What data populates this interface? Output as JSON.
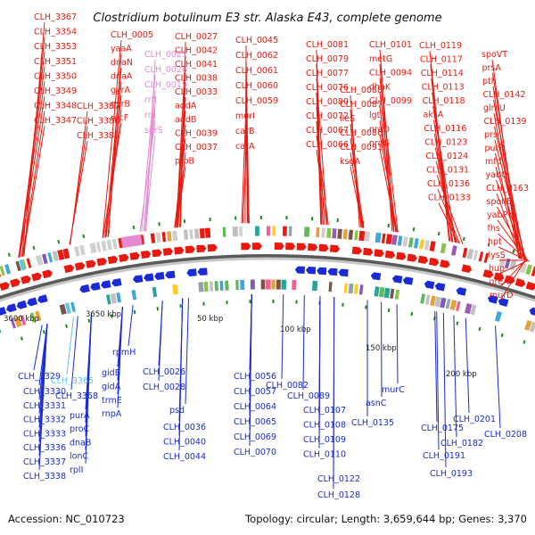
{
  "title": "Clostridium botulinum E3 str. Alaska E43, complete genome",
  "accession_text": "Accession: NC_010723",
  "topology_text": "Topology: circular; Length: 3,659,644 bp; Genes: 3,370",
  "colors": {
    "forward": "#e8190f",
    "reverse": "#1a2bd6",
    "rna": "#e58ad1",
    "cyan": "#5fc4e8",
    "backbone": "#8f8f8f",
    "tick": "#1a8a1a"
  },
  "scale_labels": [
    "3600 kbp",
    "3650 kbp",
    "50 kbp",
    "100 kbp",
    "150 kbp",
    "200 kbp"
  ],
  "top_labels": [
    "CLH_3367",
    "CLH_3354",
    "CLH_3353",
    "CLH_3351",
    "CLH_3350",
    "CLH_3349",
    "CLH_3348",
    "CLH_3347",
    "CLH_3387",
    "CLH_3386",
    "CLH_3385",
    "CLH_0005",
    "yaaA",
    "dnaN",
    "dnaA",
    "gyrA",
    "gyrB",
    "recF",
    "CLH_0021",
    "CLH_0020",
    "CLH_0019",
    "rrfJ",
    "rrlJ",
    "serS",
    "CLH_0027",
    "CLH_0042",
    "CLH_0041",
    "CLH_0038",
    "CLH_0033",
    "addA",
    "addB",
    "CLH_0039",
    "CLH_0037",
    "proB",
    "CLH_0045",
    "CLH_0062",
    "CLH_0061",
    "CLH_0060",
    "CLH_0059",
    "murI",
    "carB",
    "carA",
    "CLH_0081",
    "CLH_0079",
    "CLH_0077",
    "CLH_0076",
    "CLH_0080",
    "CLH_0072",
    "CLH_0067",
    "CLH_0066",
    "CLH_0088",
    "CLH_0087",
    "ileS",
    "CLH_0086",
    "CLH_0091",
    "ksgA",
    "CLH_0101",
    "metG",
    "CLH_0094",
    "dhaK",
    "CLH_0099",
    "lgt",
    "nrdD",
    "nrdG",
    "CLH_0119",
    "CLH_0117",
    "CLH_0114",
    "CLH_0113",
    "CLH_0118",
    "aksA",
    "CLH_0116",
    "CLH_0123",
    "CLH_0124",
    "CLH_0131",
    "CLH_0136",
    "CLH_0133",
    "spoVT",
    "prsA",
    "pth",
    "CLH_0142",
    "glmU",
    "CLH_0139",
    "prs",
    "purR",
    "mfd",
    "yabQ",
    "CLH_0163",
    "spoIIE",
    "yabP",
    "fhs",
    "hpt",
    "lysS",
    "hup",
    "greA",
    "murD"
  ],
  "bottom_labels": [
    "CLH_3329",
    "CLH_3365",
    "CLH_3330",
    "CLH_3331",
    "CLH_3332",
    "CLH_3333",
    "CLH_3336",
    "CLH_3337",
    "CLH_3338",
    "CLH_3368",
    "purA",
    "proC",
    "dnaB",
    "lonC",
    "rplI",
    "rpmH",
    "gidB",
    "gidA",
    "trmE",
    "rnpA",
    "CLH_0026",
    "CLH_0028",
    "psd",
    "CLH_0036",
    "CLH_0040",
    "CLH_0044",
    "CLH_0056",
    "CLH_0057",
    "CLH_0064",
    "CLH_0065",
    "CLH_0069",
    "CLH_0070",
    "CLH_0082",
    "CLH_0089",
    "CLH_0107",
    "CLH_0108",
    "CLH_0109",
    "CLH_0110",
    "CLH_0122",
    "CLH_0128",
    "asnC",
    "murC",
    "CLH_0135",
    "CLH_0175",
    "CLH_0182",
    "CLH_0191",
    "CLH_0193",
    "CLH_0201",
    "CLH_0208"
  ]
}
